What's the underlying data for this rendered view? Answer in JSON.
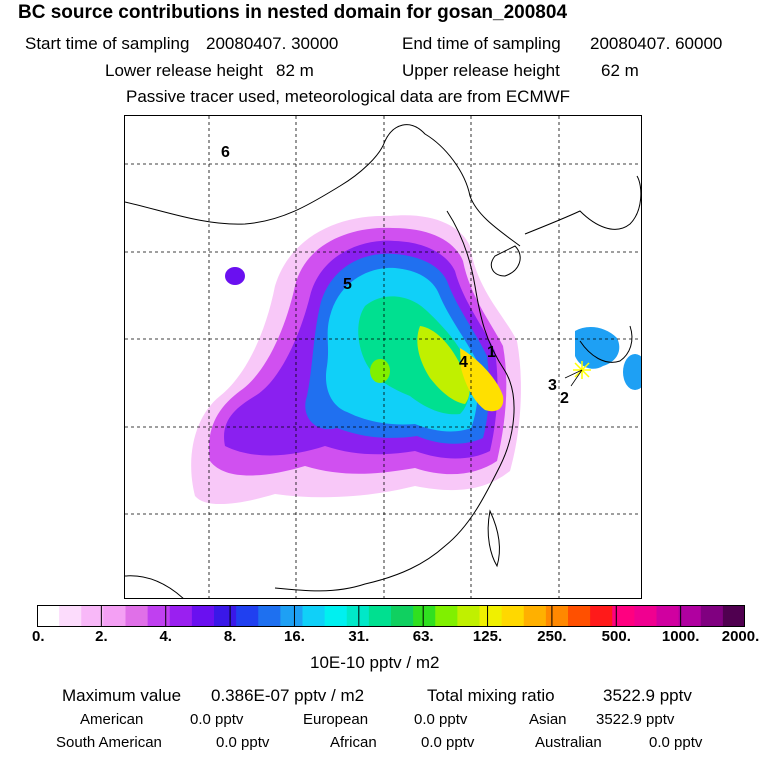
{
  "header": {
    "title": "BC  source contributions in nested domain for gosan_200804",
    "start_label": "Start time of sampling",
    "start_value": "20080407. 30000",
    "end_label": "End time of sampling",
    "end_value": "20080407. 60000",
    "lower_label": "Lower release height",
    "lower_value": "82 m",
    "upper_label": "Upper release height",
    "upper_value": "62 m",
    "note": "Passive tracer used, meteorological data are from ECMWF"
  },
  "map": {
    "region_labels": [
      "6",
      "5",
      "4",
      "1",
      "3",
      "2"
    ]
  },
  "colorbar": {
    "ticks": [
      "0.",
      "2.",
      "4.",
      "8.",
      "16.",
      "31.",
      "63.",
      "125.",
      "250.",
      "500.",
      "1000.",
      "2000."
    ],
    "colors": [
      "#ffffff",
      "#fcdcfc",
      "#f8b8f8",
      "#f4a0f4",
      "#e070e8",
      "#c040f0",
      "#9a20f0",
      "#6a10f0",
      "#3a18e8",
      "#2040f0",
      "#1e70f0",
      "#1ea0f4",
      "#10d0f8",
      "#00f0f0",
      "#00e8c8",
      "#00e090",
      "#10d060",
      "#30e020",
      "#80f000",
      "#c0f000",
      "#f0f000",
      "#ffd800",
      "#ffb000",
      "#ff8800",
      "#ff5000",
      "#ff1a1a",
      "#ff0080",
      "#f00090",
      "#d000a0",
      "#b000a0",
      "#800080",
      "#500050"
    ],
    "units": "10E-10 pptv / m2"
  },
  "stats": {
    "max_label": "Maximum value",
    "max_value": "0.386E-07 pptv / m2",
    "total_label": "Total mixing ratio",
    "total_value": "3522.9 pptv",
    "american_label": "American",
    "american_value": "0.0 pptv",
    "european_label": "European",
    "european_value": "0.0 pptv",
    "asian_label": "Asian",
    "asian_value": "3522.9 pptv",
    "south_american_label": "South American",
    "south_american_value": "0.0 pptv",
    "african_label": "African",
    "african_value": "0.0 pptv",
    "australian_label": "Australian",
    "australian_value": "0.0 pptv"
  }
}
